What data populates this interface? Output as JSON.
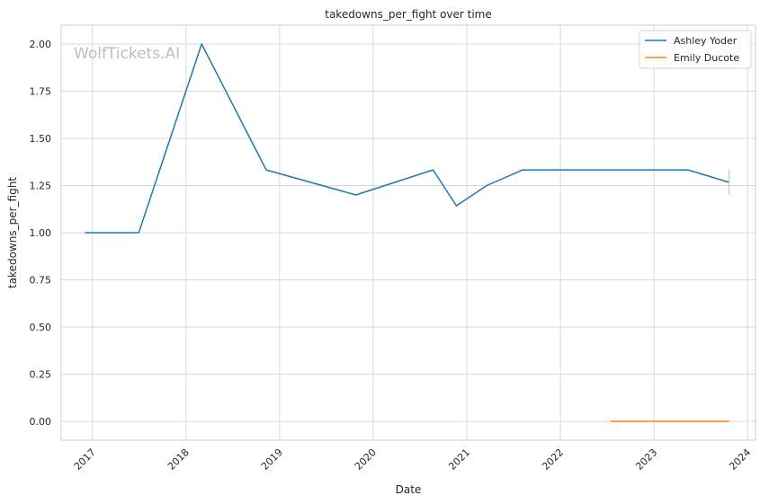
{
  "chart_data": {
    "type": "line",
    "title": "takedowns_per_fight over time",
    "xlabel": "Date",
    "ylabel": "takedowns_per_fight",
    "watermark": "WolfTickets.AI",
    "xlim": [
      "2016-09-01",
      "2024-02-01"
    ],
    "ylim": [
      -0.1,
      2.1
    ],
    "x_ticks": [
      "2017",
      "2018",
      "2019",
      "2020",
      "2021",
      "2022",
      "2023",
      "2024"
    ],
    "y_ticks": [
      "0.00",
      "0.25",
      "0.50",
      "0.75",
      "1.00",
      "1.25",
      "1.50",
      "1.75",
      "2.00"
    ],
    "grid": true,
    "legend_position": "top-right",
    "series": [
      {
        "name": "Ashley Yoder",
        "color": "#1f77b4",
        "points": [
          {
            "x": "2016-12-03",
            "y": 1.0
          },
          {
            "x": "2017-07-01",
            "y": 1.0
          },
          {
            "x": "2018-03-03",
            "y": 2.0
          },
          {
            "x": "2018-11-10",
            "y": 1.333
          },
          {
            "x": "2019-10-26",
            "y": 1.2
          },
          {
            "x": "2020-08-22",
            "y": 1.333
          },
          {
            "x": "2020-11-21",
            "y": 1.143
          },
          {
            "x": "2021-03-20",
            "y": 1.25
          },
          {
            "x": "2021-08-07",
            "y": 1.333
          },
          {
            "x": "2023-05-13",
            "y": 1.333
          },
          {
            "x": "2023-10-21",
            "y": 1.267
          }
        ]
      },
      {
        "name": "Emily Ducote",
        "color": "#ff7f0e",
        "points": [
          {
            "x": "2022-07-16",
            "y": 0.0
          },
          {
            "x": "2023-10-21",
            "y": 0.0
          }
        ]
      }
    ]
  }
}
